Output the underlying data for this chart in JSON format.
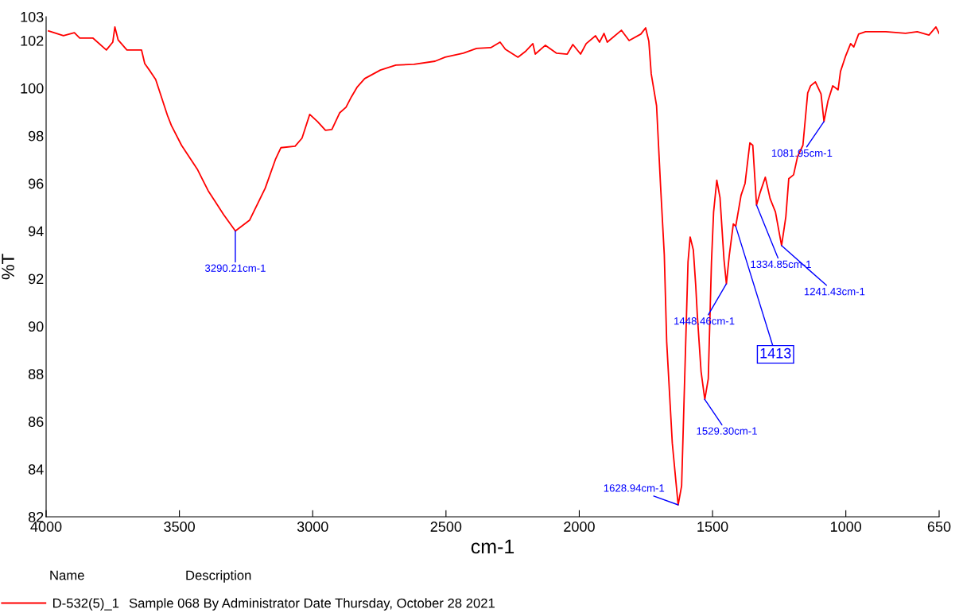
{
  "chart_data": {
    "type": "line",
    "xlabel": "cm-1",
    "ylabel": "%T",
    "xlim": [
      4000,
      650
    ],
    "ylim": [
      82,
      103
    ],
    "xticks": [
      4000,
      3500,
      3000,
      2500,
      2000,
      1500,
      1000,
      650
    ],
    "yticks": [
      82,
      84,
      86,
      88,
      90,
      92,
      94,
      96,
      98,
      100,
      102,
      103
    ],
    "grid": false,
    "marker": "none",
    "line_style": "solid",
    "legend": "bottom left",
    "series": [
      {
        "name": "D-532(5)_1",
        "color": "#ff0000",
        "x": [
          3991,
          3935,
          3894,
          3874,
          3824,
          3774,
          3750,
          3742,
          3730,
          3697,
          3642,
          3630,
          3609,
          3589,
          3545,
          3530,
          3492,
          3433,
          3392,
          3334,
          3290,
          3237,
          3178,
          3140,
          3119,
          3066,
          3040,
          3011,
          2982,
          2952,
          2928,
          2899,
          2875,
          2855,
          2834,
          2805,
          2746,
          2688,
          2620,
          2541,
          2503,
          2435,
          2385,
          2332,
          2297,
          2277,
          2230,
          2203,
          2174,
          2165,
          2127,
          2086,
          2045,
          2024,
          1995,
          1974,
          1939,
          1924,
          1907,
          1895,
          1842,
          1813,
          1769,
          1751,
          1739,
          1730,
          1710,
          1695,
          1681,
          1672,
          1651,
          1637,
          1629,
          1616,
          1592,
          1584,
          1572,
          1563,
          1557,
          1543,
          1529,
          1516,
          1504,
          1496,
          1484,
          1472,
          1457,
          1448,
          1437,
          1422,
          1413,
          1393,
          1378,
          1360,
          1349,
          1335,
          1322,
          1302,
          1284,
          1264,
          1241,
          1225,
          1214,
          1196,
          1181,
          1161,
          1143,
          1132,
          1114,
          1093,
          1082,
          1067,
          1049,
          1029,
          1020,
          1000,
          982,
          970,
          952,
          926,
          850,
          776,
          732,
          688,
          662,
          650
        ],
        "values": [
          102.4,
          102.2,
          102.33,
          102.1,
          102.1,
          101.6,
          101.93,
          102.57,
          102.03,
          101.6,
          101.6,
          101.03,
          100.7,
          100.36,
          98.86,
          98.43,
          97.6,
          96.6,
          95.69,
          94.69,
          94.0,
          94.45,
          95.8,
          97.0,
          97.5,
          97.56,
          97.9,
          98.9,
          98.6,
          98.23,
          98.26,
          98.96,
          99.2,
          99.63,
          100.03,
          100.4,
          100.76,
          100.97,
          101.0,
          101.13,
          101.3,
          101.47,
          101.67,
          101.7,
          101.93,
          101.63,
          101.3,
          101.53,
          101.87,
          101.43,
          101.8,
          101.47,
          101.43,
          101.83,
          101.43,
          101.87,
          102.2,
          101.93,
          102.3,
          101.93,
          102.43,
          102.0,
          102.27,
          102.53,
          101.97,
          100.6,
          99.26,
          95.9,
          93.0,
          89.35,
          85.1,
          83.43,
          82.5,
          83.3,
          92.7,
          93.75,
          93.2,
          91.7,
          90.45,
          88.1,
          86.93,
          87.8,
          92.7,
          94.8,
          96.13,
          95.4,
          92.8,
          91.78,
          93.0,
          94.3,
          94.2,
          95.5,
          96.0,
          97.7,
          97.6,
          95.09,
          95.6,
          96.26,
          95.36,
          94.8,
          93.39,
          94.6,
          96.2,
          96.36,
          97.13,
          97.6,
          99.8,
          100.1,
          100.26,
          99.76,
          98.6,
          99.46,
          100.1,
          99.93,
          100.7,
          101.37,
          101.87,
          101.73,
          102.27,
          102.37,
          102.37,
          102.3,
          102.37,
          102.23,
          102.57,
          102.3
        ]
      }
    ],
    "annotations": [
      {
        "text": "3290.21cm-1",
        "x": 3290.21,
        "y": 94.0
      },
      {
        "text": "1628.94cm-1",
        "x": 1628.94,
        "y": 82.5
      },
      {
        "text": "1529.30cm-1",
        "x": 1529.3,
        "y": 86.93
      },
      {
        "text": "1448.46cm-1",
        "x": 1448.46,
        "y": 91.78
      },
      {
        "text": "1413",
        "x": 1413,
        "y": 94.2
      },
      {
        "text": "1334.85cm-1",
        "x": 1334.85,
        "y": 95.09
      },
      {
        "text": "1241.43cm-1",
        "x": 1241.43,
        "y": 93.39
      },
      {
        "text": "1081.95cm-1",
        "x": 1081.95,
        "y": 98.6
      },
      "Name",
      "Description",
      "Sample 068 By Administrator Date Thursday, October 28 2021"
    ]
  }
}
